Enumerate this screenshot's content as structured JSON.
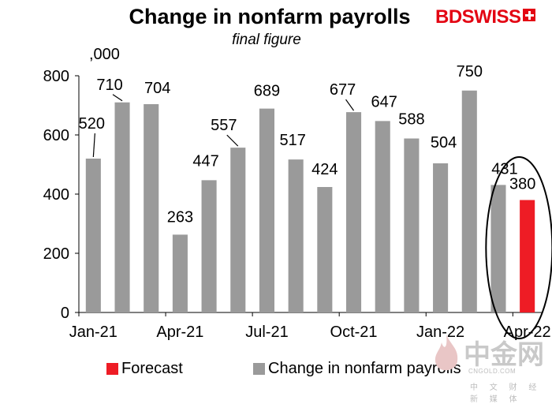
{
  "brand": {
    "logo_left": "BD",
    "logo_right": "SWISS",
    "logo_color": "#e30613"
  },
  "watermark": {
    "mark": "中金网",
    "site": "CNGOLD.COM",
    "tagline": "中 文 财 经 新 媒 体"
  },
  "chart_data": {
    "type": "bar",
    "title": "Change in nonfarm payrolls",
    "subtitle": "final figure",
    "unit_label": ",000",
    "categories": [
      "Jan-21",
      "Feb-21",
      "Mar-21",
      "Apr-21",
      "May-21",
      "Jun-21",
      "Jul-21",
      "Aug-21",
      "Sep-21",
      "Oct-21",
      "Nov-21",
      "Dec-21",
      "Jan-22",
      "Feb-22",
      "Mar-22",
      "Apr-22"
    ],
    "x_tick_labels": [
      "Jan-21",
      "Apr-21",
      "Jul-21",
      "Oct-21",
      "Jan-22",
      "Apr-22"
    ],
    "series": [
      {
        "name": "Change in nonfarm payrolls",
        "color": "#9a9a9a",
        "values": [
          520,
          710,
          704,
          263,
          447,
          557,
          689,
          517,
          424,
          677,
          647,
          588,
          504,
          750,
          431,
          null
        ]
      },
      {
        "name": "Forecast",
        "color": "#ee1c25",
        "values": [
          null,
          null,
          null,
          null,
          null,
          null,
          null,
          null,
          null,
          null,
          null,
          null,
          null,
          null,
          null,
          380
        ]
      }
    ],
    "data_labels": [
      "520",
      "710",
      "704",
      "263",
      "447",
      "557",
      "689",
      "517",
      "424",
      "677",
      "647",
      "588",
      "504",
      "750",
      "431",
      "380"
    ],
    "y_ticks": [
      0,
      200,
      400,
      600,
      800
    ],
    "ylim": [
      0,
      800
    ],
    "grid": false,
    "legend_position": "bottom",
    "legend": [
      "Forecast",
      "Change in nonfarm payrolls"
    ],
    "annotation": "ellipse around Mar-22 and Apr-22"
  }
}
